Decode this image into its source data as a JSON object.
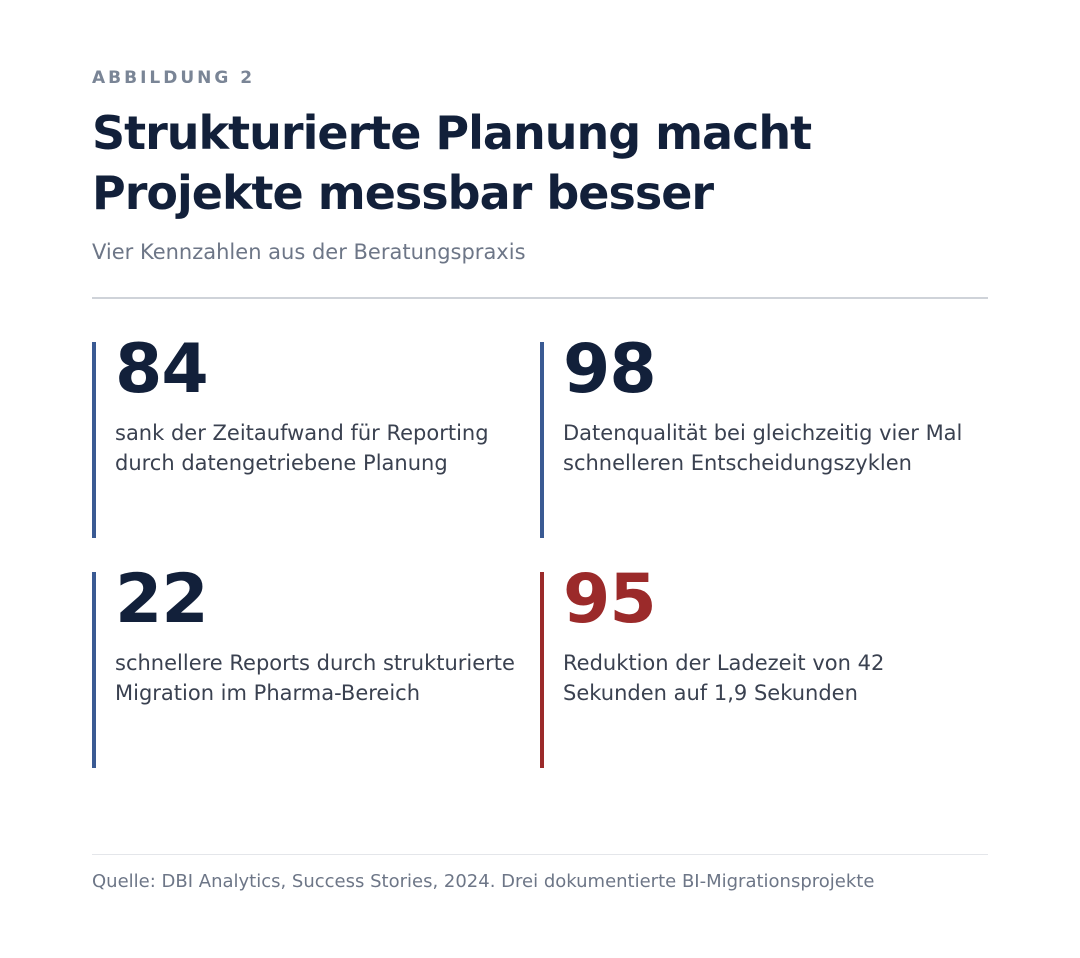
{
  "figure": {
    "eyebrow": "ABBILDUNG 2",
    "title_line1": "Strukturierte Planung macht",
    "title_line2": "Projekte messbar besser",
    "subtitle": "Vier Kennzahlen aus der Beratungspraxis"
  },
  "stats": [
    {
      "value": "84",
      "description": "sank der Zeitaufwand für Reporting durch datengetriebene Planung",
      "accent": false
    },
    {
      "value": "98",
      "description": "Datenqualität bei gleichzeitig vier Mal schnelleren Entscheidungszyklen",
      "accent": false
    },
    {
      "value": "22",
      "description": "schnellere Reports durch strukturierte Migration im Pharma-Bereich",
      "accent": false
    },
    {
      "value": "95",
      "description": "Reduktion der Ladezeit von 42 Sekunden auf 1,9 Sekunden",
      "accent": true
    }
  ],
  "colors": {
    "primary_text": "#12203a",
    "bar_blue": "#3a5a93",
    "accent_red": "#9b2a2a",
    "muted_text": "#6d7687"
  },
  "footer": {
    "source": "Quelle: DBI Analytics, Success Stories, 2024. Drei dokumentierte BI-Migrationsprojekte"
  }
}
